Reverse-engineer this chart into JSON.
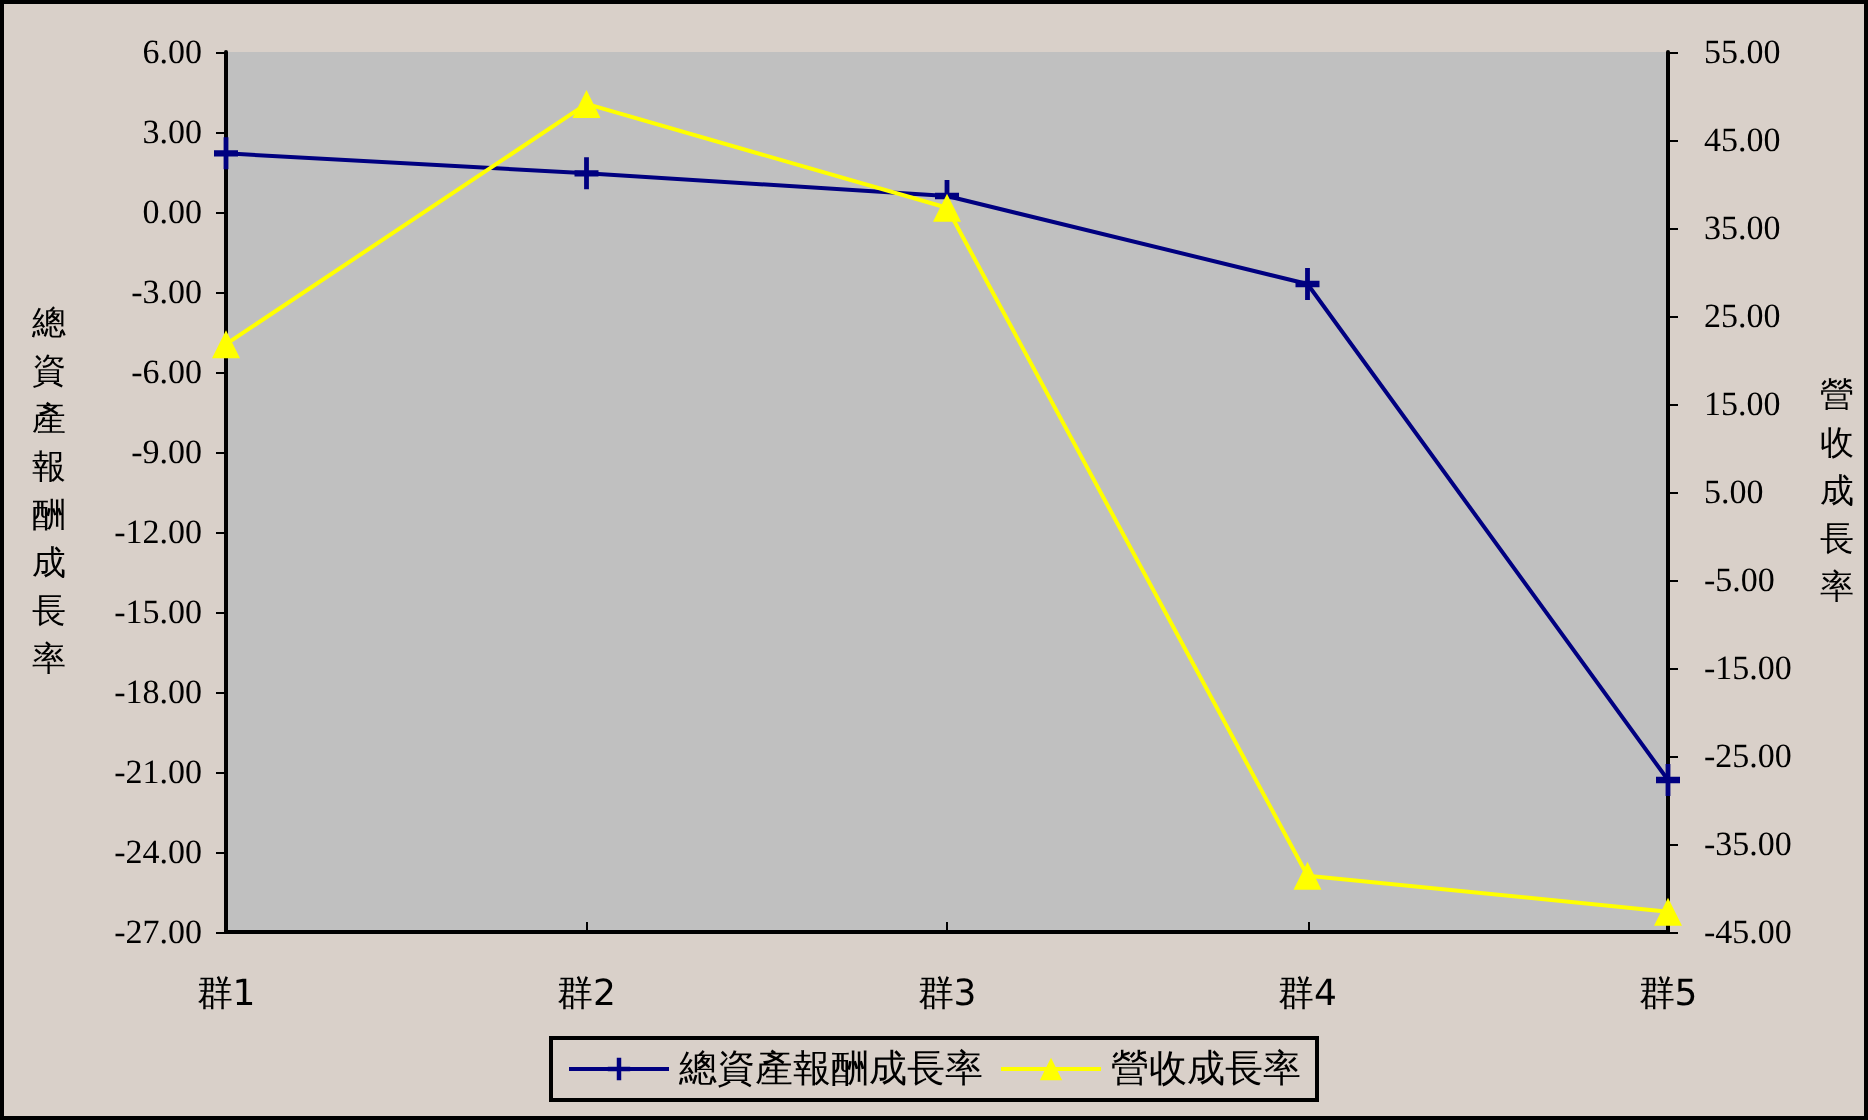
{
  "chart_data": {
    "type": "line",
    "categories": [
      "群1",
      "群2",
      "群3",
      "群4",
      "群5"
    ],
    "ylabel": "總資產報酬成長率",
    "y2label": "營收成長率",
    "ylim": [
      -27,
      6
    ],
    "yticks": [
      {
        "value": 6,
        "label": "6.00"
      },
      {
        "value": 3,
        "label": "3.00"
      },
      {
        "value": 0,
        "label": "0.00"
      },
      {
        "value": -3,
        "label": "-3.00"
      },
      {
        "value": -6,
        "label": "-6.00"
      },
      {
        "value": -9,
        "label": "-9.00"
      },
      {
        "value": -12,
        "label": "-12.00"
      },
      {
        "value": -15,
        "label": "-15.00"
      },
      {
        "value": -18,
        "label": "-18.00"
      },
      {
        "value": -21,
        "label": "-21.00"
      },
      {
        "value": -24,
        "label": "-24.00"
      },
      {
        "value": -27,
        "label": "-27.00"
      }
    ],
    "y2lim": [
      -45,
      55
    ],
    "y2ticks": [
      {
        "value": 55,
        "label": "55.00"
      },
      {
        "value": 45,
        "label": "45.00"
      },
      {
        "value": 35,
        "label": "35.00"
      },
      {
        "value": 25,
        "label": "25.00"
      },
      {
        "value": 15,
        "label": "15.00"
      },
      {
        "value": 5,
        "label": "5.00"
      },
      {
        "value": -5,
        "label": "-5.00"
      },
      {
        "value": -15,
        "label": "-15.00"
      },
      {
        "value": -25,
        "label": "-25.00"
      },
      {
        "value": -35,
        "label": "-35.00"
      },
      {
        "value": -45,
        "label": "-45.00"
      }
    ],
    "series": [
      {
        "name": "總資產報酬成長率",
        "color": "#000080",
        "marker": "cross",
        "values": [
          2.2,
          1.45,
          0.6,
          -2.7,
          -21.3
        ]
      },
      {
        "name": "營收成長率",
        "color": "#ffff00",
        "marker": "triangle",
        "axis": "y2",
        "values": [
          21.8,
          49.1,
          37.3,
          -38.6,
          -42.7
        ]
      }
    ],
    "grid": false,
    "legend": "bottom"
  }
}
